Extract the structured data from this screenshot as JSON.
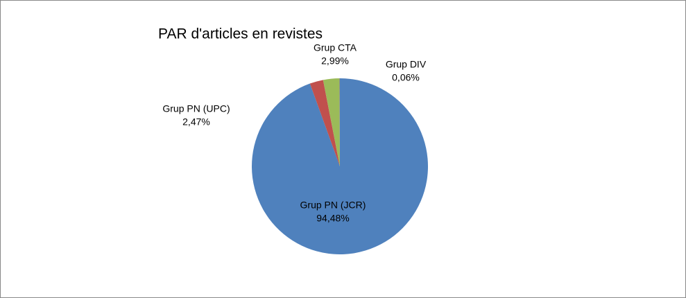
{
  "chart_data": {
    "type": "pie",
    "title": "PAR d'articles en revistes",
    "categories": [
      "Grup PN (JCR)",
      "Grup PN (UPC)",
      "Grup CTA",
      "Grup DIV"
    ],
    "values": [
      94.48,
      2.47,
      2.99,
      0.06
    ],
    "value_labels": [
      "94,48%",
      "2,47%",
      "2,99%",
      "0,06%"
    ],
    "colors": [
      "#4f81bd",
      "#c0504d",
      "#9bbb59",
      "#8064a2"
    ]
  }
}
